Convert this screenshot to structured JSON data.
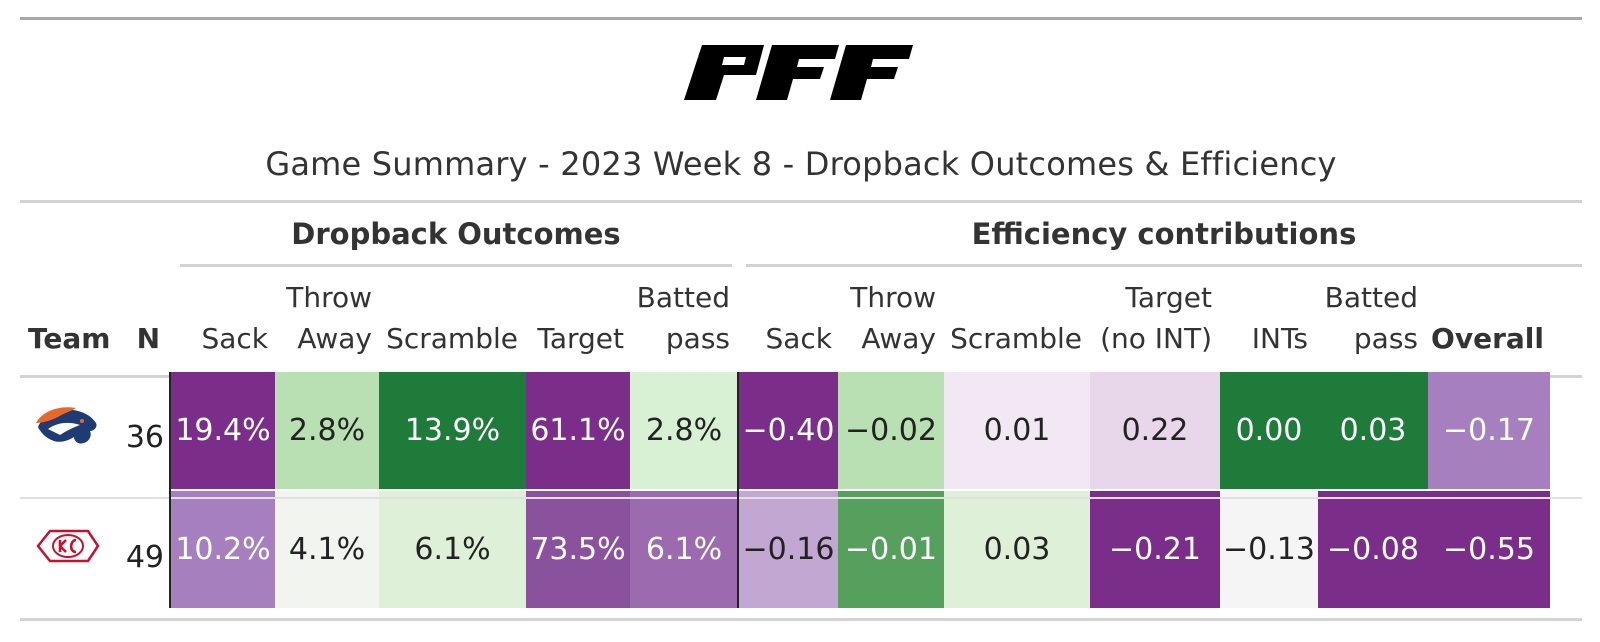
{
  "logo_text": "PFF",
  "title": "Game Summary - 2023 Week 8 - Dropback Outcomes & Efficiency",
  "spanners": {
    "dropback": "Dropback Outcomes",
    "efficiency": "Efficiency contributions"
  },
  "columns": {
    "team": "Team",
    "n": "N",
    "sack": "Sack",
    "throw_away_1": "Throw",
    "throw_away_2": "Away",
    "scramble": "Scramble",
    "target": "Target",
    "batted_1": "Batted",
    "batted_2": "pass",
    "eff_sack": "Sack",
    "eff_throw_1": "Throw",
    "eff_throw_2": "Away",
    "eff_scramble": "Scramble",
    "eff_target_1": "Target",
    "eff_target_2": "(no INT)",
    "eff_ints": "INTs",
    "eff_batted_1": "Batted",
    "eff_batted_2": "pass",
    "eff_overall": "Overall"
  },
  "rows": [
    {
      "team_icon": "broncos-logo-icon",
      "n": "36",
      "cells": [
        "19.4%",
        "2.8%",
        "13.9%",
        "61.1%",
        "2.8%",
        "−0.40",
        "−0.02",
        "0.01",
        "0.22",
        "0.00",
        "0.03",
        "−0.17"
      ],
      "colors": [
        "#7b2d8a",
        "#b8e0b2",
        "#1f7b3a",
        "#7b2d8a",
        "#d8f0d3",
        "#7b2d8a",
        "#b8e0b2",
        "#f2e8f3",
        "#e8d6eb",
        "#1f7b3a",
        "#1f7b3a",
        "#a680be"
      ],
      "text_colors": [
        "#ffffff",
        "#222222",
        "#ffffff",
        "#ffffff",
        "#222222",
        "#ffffff",
        "#222222",
        "#222222",
        "#222222",
        "#ffffff",
        "#ffffff",
        "#ffffff"
      ]
    },
    {
      "team_icon": "chiefs-logo-icon",
      "n": "49",
      "cells": [
        "10.2%",
        "4.1%",
        "6.1%",
        "73.5%",
        "6.1%",
        "−0.16",
        "−0.01",
        "0.03",
        "−0.21",
        "−0.13",
        "−0.08",
        "−0.55"
      ],
      "colors": [
        "#a680be",
        "#f2f4f0",
        "#def0d8",
        "#8a519c",
        "#9b6aaf",
        "#c2a7d3",
        "#55a05c",
        "#def0d8",
        "#7b2d8a",
        "#f5f5f5",
        "#7b2d8a",
        "#7b2d8a"
      ],
      "text_colors": [
        "#ffffff",
        "#222222",
        "#222222",
        "#ffffff",
        "#ffffff",
        "#222222",
        "#ffffff",
        "#222222",
        "#ffffff",
        "#222222",
        "#ffffff",
        "#ffffff"
      ]
    }
  ]
}
